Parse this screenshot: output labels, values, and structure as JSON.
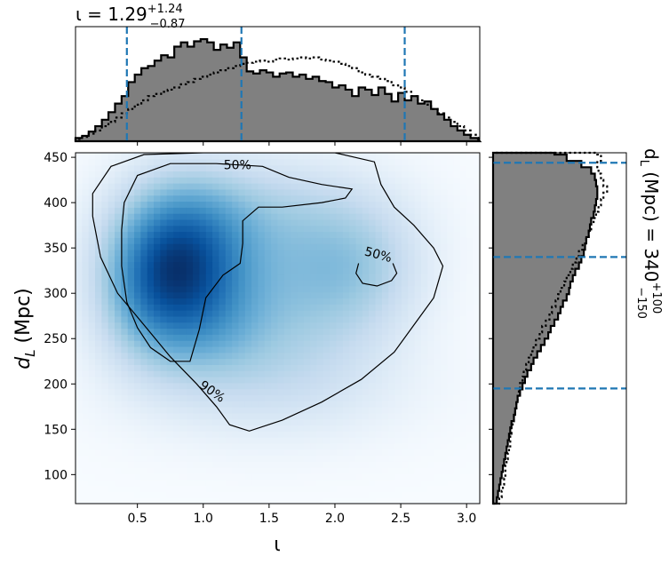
{
  "chart_data": [
    {
      "type": "histogram",
      "panel": "top marginal",
      "title_base": "ι = 1.29",
      "title_sup": "+1.24",
      "title_sub": "−0.87",
      "xlim": [
        0.03,
        3.1
      ],
      "quantile_lines": [
        0.42,
        1.29,
        2.53
      ],
      "series": [
        {
          "style": "filled-gray-step",
          "x": [
            0.03,
            0.08,
            0.13,
            0.18,
            0.23,
            0.28,
            0.33,
            0.38,
            0.43,
            0.48,
            0.53,
            0.58,
            0.63,
            0.68,
            0.73,
            0.78,
            0.83,
            0.88,
            0.93,
            0.98,
            1.03,
            1.08,
            1.13,
            1.18,
            1.23,
            1.28,
            1.33,
            1.38,
            1.43,
            1.48,
            1.53,
            1.58,
            1.63,
            1.68,
            1.73,
            1.78,
            1.83,
            1.88,
            1.93,
            1.98,
            2.03,
            2.08,
            2.13,
            2.18,
            2.23,
            2.28,
            2.33,
            2.38,
            2.43,
            2.48,
            2.53,
            2.58,
            2.63,
            2.68,
            2.73,
            2.78,
            2.83,
            2.88,
            2.93,
            2.98,
            3.03
          ],
          "values": [
            0.03,
            0.05,
            0.09,
            0.14,
            0.2,
            0.27,
            0.35,
            0.42,
            0.55,
            0.62,
            0.68,
            0.7,
            0.75,
            0.8,
            0.78,
            0.88,
            0.92,
            0.88,
            0.93,
            0.95,
            0.92,
            0.85,
            0.9,
            0.87,
            0.92,
            0.78,
            0.65,
            0.63,
            0.66,
            0.64,
            0.6,
            0.63,
            0.64,
            0.6,
            0.62,
            0.58,
            0.6,
            0.56,
            0.55,
            0.5,
            0.52,
            0.48,
            0.42,
            0.5,
            0.48,
            0.43,
            0.5,
            0.44,
            0.37,
            0.45,
            0.38,
            0.42,
            0.35,
            0.37,
            0.3,
            0.25,
            0.2,
            0.14,
            0.1,
            0.06,
            0.03
          ]
        },
        {
          "style": "dotted-step",
          "x": [
            0.03,
            0.08,
            0.13,
            0.18,
            0.23,
            0.28,
            0.33,
            0.38,
            0.43,
            0.48,
            0.53,
            0.58,
            0.63,
            0.68,
            0.73,
            0.78,
            0.83,
            0.88,
            0.93,
            0.98,
            1.03,
            1.08,
            1.13,
            1.18,
            1.23,
            1.28,
            1.33,
            1.38,
            1.43,
            1.48,
            1.53,
            1.58,
            1.63,
            1.68,
            1.73,
            1.78,
            1.83,
            1.88,
            1.93,
            1.98,
            2.03,
            2.08,
            2.13,
            2.18,
            2.23,
            2.28,
            2.33,
            2.38,
            2.43,
            2.48,
            2.53,
            2.58,
            2.63,
            2.68,
            2.73,
            2.78,
            2.83,
            2.88,
            2.93,
            2.98,
            3.03
          ],
          "values": [
            0.02,
            0.04,
            0.07,
            0.1,
            0.14,
            0.18,
            0.22,
            0.26,
            0.3,
            0.34,
            0.38,
            0.42,
            0.44,
            0.46,
            0.48,
            0.5,
            0.53,
            0.55,
            0.58,
            0.6,
            0.62,
            0.64,
            0.66,
            0.68,
            0.7,
            0.72,
            0.73,
            0.74,
            0.75,
            0.74,
            0.76,
            0.77,
            0.76,
            0.77,
            0.78,
            0.77,
            0.78,
            0.76,
            0.75,
            0.74,
            0.72,
            0.7,
            0.68,
            0.64,
            0.62,
            0.6,
            0.58,
            0.56,
            0.52,
            0.5,
            0.46,
            0.42,
            0.38,
            0.34,
            0.3,
            0.26,
            0.22,
            0.18,
            0.14,
            0.1,
            0.06
          ]
        }
      ]
    },
    {
      "type": "heatmap",
      "panel": "main",
      "xlabel": "ι",
      "ylabel": "d",
      "ylabel_sub": "L",
      "ylabel_rest": " (Mpc)",
      "xlim": [
        0.03,
        3.1
      ],
      "ylim": [
        68,
        455
      ],
      "xticks": [
        0.5,
        1.0,
        1.5,
        2.0,
        2.5,
        3.0
      ],
      "xtick_labels": [
        "0.5",
        "1.0",
        "1.5",
        "2.0",
        "2.5",
        "3.0"
      ],
      "yticks": [
        100,
        150,
        200,
        250,
        300,
        350,
        400,
        450
      ],
      "ytick_labels": [
        "100",
        "150",
        "200",
        "250",
        "300",
        "350",
        "400",
        "450"
      ],
      "colormap": "Blues",
      "density_peaks": [
        {
          "x": 0.85,
          "y": 345,
          "w": 1.0,
          "sx": 0.35,
          "sy": 55
        },
        {
          "x": 0.6,
          "y": 300,
          "w": 0.55,
          "sx": 0.3,
          "sy": 55
        },
        {
          "x": 1.05,
          "y": 270,
          "w": 0.4,
          "sx": 0.35,
          "sy": 45
        },
        {
          "x": 1.75,
          "y": 300,
          "w": 0.38,
          "sx": 0.45,
          "sy": 60
        },
        {
          "x": 2.2,
          "y": 330,
          "w": 0.3,
          "sx": 0.35,
          "sy": 50
        },
        {
          "x": 1.5,
          "y": 390,
          "w": 0.3,
          "sx": 0.6,
          "sy": 45
        },
        {
          "x": 1.5,
          "y": 200,
          "w": 0.22,
          "sx": 0.7,
          "sy": 45
        }
      ],
      "contours": [
        {
          "level": "90%",
          "label": "90%",
          "label_at": [
            1.07,
            192
          ],
          "label_angle_deg": 35,
          "points": [
            [
              0.16,
              385
            ],
            [
              0.16,
              410
            ],
            [
              0.3,
              440
            ],
            [
              0.55,
              453
            ],
            [
              1.0,
              455
            ],
            [
              1.5,
              455
            ],
            [
              2.0,
              455
            ],
            [
              2.3,
              445
            ],
            [
              2.35,
              420
            ],
            [
              2.45,
              395
            ],
            [
              2.6,
              375
            ],
            [
              2.75,
              350
            ],
            [
              2.82,
              330
            ],
            [
              2.75,
              295
            ],
            [
              2.6,
              265
            ],
            [
              2.45,
              235
            ],
            [
              2.2,
              205
            ],
            [
              1.9,
              180
            ],
            [
              1.6,
              160
            ],
            [
              1.35,
              148
            ],
            [
              1.2,
              155
            ],
            [
              1.1,
              175
            ],
            [
              0.95,
              200
            ],
            [
              0.75,
              230
            ],
            [
              0.55,
              265
            ],
            [
              0.35,
              300
            ],
            [
              0.22,
              340
            ],
            [
              0.16,
              385
            ]
          ]
        },
        {
          "level": "50%",
          "label": "50%",
          "label_at": [
            1.26,
            442
          ],
          "label_angle_deg": 0,
          "points": [
            [
              0.38,
              370
            ],
            [
              0.4,
              400
            ],
            [
              0.5,
              430
            ],
            [
              0.75,
              443
            ],
            [
              1.1,
              443
            ],
            [
              1.45,
              440
            ],
            [
              1.65,
              428
            ],
            [
              1.9,
              420
            ],
            [
              2.13,
              415
            ],
            [
              2.08,
              405
            ],
            [
              1.9,
              400
            ],
            [
              1.6,
              395
            ],
            [
              1.42,
              395
            ],
            [
              1.3,
              380
            ],
            [
              1.3,
              355
            ],
            [
              1.28,
              333
            ],
            [
              1.15,
              320
            ],
            [
              1.02,
              295
            ],
            [
              0.97,
              260
            ],
            [
              0.9,
              225
            ],
            [
              0.75,
              225
            ],
            [
              0.6,
              240
            ],
            [
              0.5,
              262
            ],
            [
              0.42,
              290
            ],
            [
              0.38,
              330
            ],
            [
              0.38,
              370
            ]
          ]
        },
        {
          "level": "50%",
          "label": "50%",
          "label_at": [
            2.33,
            343
          ],
          "label_angle_deg": 15,
          "points": [
            [
              2.18,
              333
            ],
            [
              2.16,
              322
            ],
            [
              2.21,
              311
            ],
            [
              2.32,
              308
            ],
            [
              2.43,
              314
            ],
            [
              2.47,
              322
            ],
            [
              2.44,
              333
            ]
          ]
        }
      ]
    },
    {
      "type": "histogram",
      "panel": "right marginal",
      "orientation": "horizontal",
      "title_base": "d",
      "title_base_sub": "L",
      "title_rest": " (Mpc) = 340",
      "title_sup": "+100",
      "title_sub": "−150",
      "ylim": [
        68,
        455
      ],
      "quantile_lines": [
        195,
        340,
        444
      ],
      "series": [
        {
          "style": "filled-gray-step",
          "y": [
            68,
            75,
            82,
            89,
            96,
            103,
            110,
            117,
            124,
            131,
            138,
            145,
            152,
            159,
            166,
            173,
            180,
            187,
            194,
            201,
            208,
            215,
            222,
            229,
            236,
            243,
            250,
            257,
            264,
            271,
            278,
            285,
            292,
            299,
            306,
            313,
            320,
            327,
            334,
            341,
            348,
            355,
            362,
            369,
            376,
            383,
            390,
            397,
            404,
            411,
            418,
            425,
            432,
            439,
            446,
            453
          ],
          "values": [
            0.03,
            0.04,
            0.05,
            0.06,
            0.07,
            0.08,
            0.09,
            0.1,
            0.11,
            0.12,
            0.13,
            0.14,
            0.15,
            0.17,
            0.18,
            0.19,
            0.2,
            0.22,
            0.24,
            0.26,
            0.28,
            0.31,
            0.33,
            0.36,
            0.39,
            0.42,
            0.45,
            0.47,
            0.5,
            0.53,
            0.55,
            0.57,
            0.6,
            0.62,
            0.63,
            0.65,
            0.67,
            0.7,
            0.72,
            0.74,
            0.75,
            0.76,
            0.78,
            0.79,
            0.8,
            0.82,
            0.83,
            0.84,
            0.85,
            0.85,
            0.84,
            0.83,
            0.8,
            0.72,
            0.6,
            0.5
          ]
        },
        {
          "style": "dotted-step",
          "y": [
            68,
            75,
            82,
            89,
            96,
            103,
            110,
            117,
            124,
            131,
            138,
            145,
            152,
            159,
            166,
            173,
            180,
            187,
            194,
            201,
            208,
            215,
            222,
            229,
            236,
            243,
            250,
            257,
            264,
            271,
            278,
            285,
            292,
            299,
            306,
            313,
            320,
            327,
            334,
            341,
            348,
            355,
            362,
            369,
            376,
            383,
            390,
            397,
            404,
            411,
            418,
            425,
            432,
            439,
            446,
            453
          ],
          "values": [
            0.05,
            0.07,
            0.08,
            0.09,
            0.1,
            0.1,
            0.11,
            0.12,
            0.13,
            0.14,
            0.14,
            0.15,
            0.16,
            0.17,
            0.18,
            0.19,
            0.2,
            0.21,
            0.22,
            0.24,
            0.25,
            0.27,
            0.29,
            0.31,
            0.33,
            0.35,
            0.38,
            0.4,
            0.43,
            0.46,
            0.48,
            0.51,
            0.53,
            0.55,
            0.58,
            0.6,
            0.63,
            0.65,
            0.68,
            0.7,
            0.73,
            0.76,
            0.78,
            0.8,
            0.82,
            0.84,
            0.86,
            0.88,
            0.9,
            0.93,
            0.9,
            0.88,
            0.86,
            0.85,
            0.88,
            0.85
          ]
        }
      ]
    }
  ],
  "colors": {
    "quantile_line": "#1f77b4",
    "hist_fill": "#808080",
    "hist_edge": "#000000",
    "contour": "#000000"
  }
}
